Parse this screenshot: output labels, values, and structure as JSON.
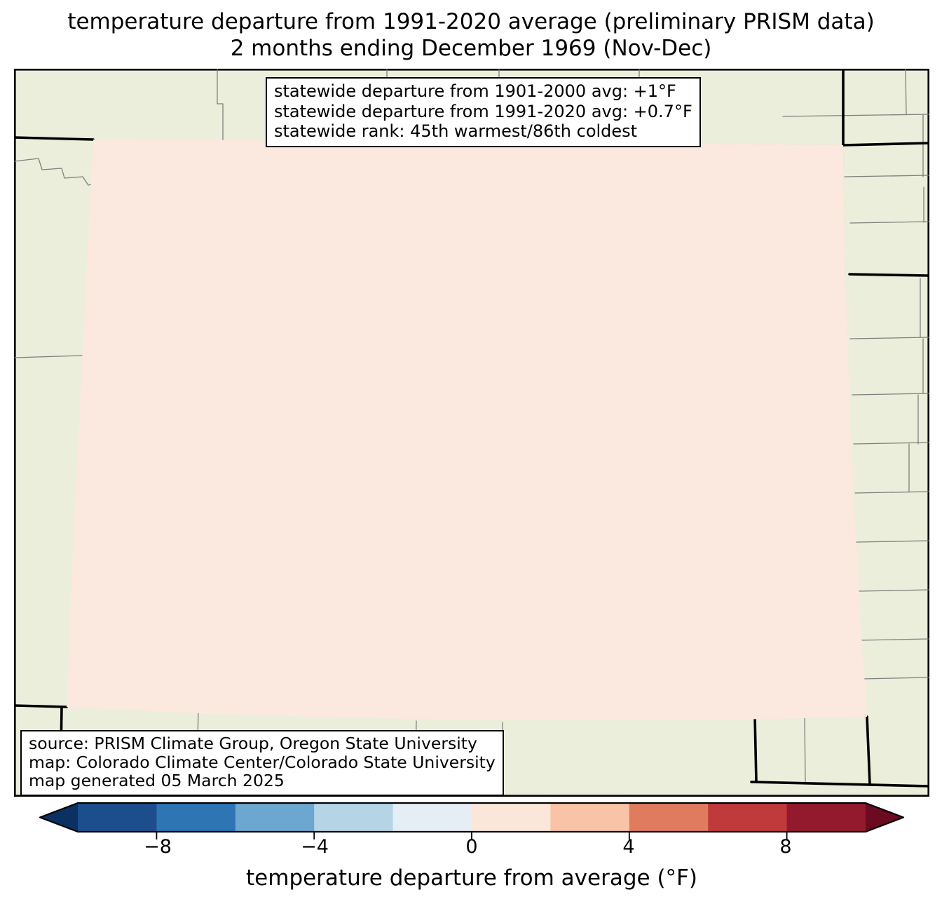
{
  "figure": {
    "title_line1": "temperature departure from 1991-2020 average (preliminary PRISM data)",
    "title_line2": "2 months ending December 1969 (Nov-Dec)"
  },
  "stats_box": {
    "lines": [
      "statewide departure from 1901-2000 avg: +1°F",
      "statewide departure from 1991-2020 avg: +0.7°F",
      "statewide rank: 45th warmest/86th coldest"
    ]
  },
  "source_box": {
    "lines": [
      "source: PRISM Climate Group, Oregon State University",
      "map: Colorado Climate Center/Colorado State University",
      "map generated 05 March 2025"
    ]
  },
  "map": {
    "region": "Colorado statewide temperature departure map with surrounding states",
    "background_color": "#ebeeda",
    "state_base_fill": "#fbe9e0",
    "cool_anomaly_fill": "#dfe9f1",
    "cool_strong_fill": "#a5cde4",
    "warm_anomaly_fill": "#f6b79a",
    "warm_strong_fill": "#df765a",
    "county_line_color": "#7f7f7f",
    "state_border_color": "#000000"
  },
  "colorbar": {
    "label": "temperature departure from average (°F)",
    "tick_labels": [
      "−8",
      "−4",
      "0",
      "4",
      "8"
    ],
    "tick_values": [
      -8,
      -4,
      0,
      4,
      8
    ],
    "range_min": -10,
    "range_max": 10,
    "segment_colors": [
      "#1c4e8e",
      "#2e75b3",
      "#6ba7d0",
      "#b5d5e7",
      "#e4eef4",
      "#fbe7da",
      "#f8c3a6",
      "#e07b5e",
      "#c03a3c",
      "#931a2c"
    ],
    "left_extend_color": "#0a3161",
    "right_extend_color": "#6b0a20"
  }
}
